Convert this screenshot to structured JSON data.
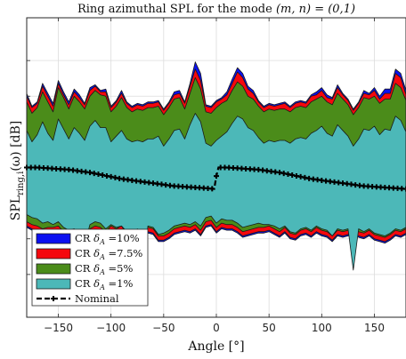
{
  "chart_data": {
    "type": "area",
    "title": "Ring azimuthal SPL for the mode (m,n) = (0,1)",
    "title_parts": {
      "main": "Ring azimuthal SPL for the mode ",
      "math": "(m, n) = (0,1)"
    },
    "xlabel": "Angle [°]",
    "ylabel": "SPL_ring,i(ω) [dB]",
    "ylabel_parts": {
      "main": "SPL",
      "sub": "ring,i",
      "arg": "(ω) [dB]"
    },
    "xlim": [
      -180,
      180
    ],
    "xticks": [
      -150,
      -100,
      -50,
      0,
      50,
      100,
      150
    ],
    "ylim": [
      -10.5,
      10.5
    ],
    "ytick_values": [
      -7.5,
      -5,
      -2.5,
      0,
      2.5,
      5,
      7.5
    ],
    "grid": true,
    "legend_position": "bottom-left",
    "series": [
      {
        "name": "CR δ_A =10%",
        "label_main": "CR ",
        "label_sym": "δ",
        "label_sub": "A",
        "label_rest": " =10%",
        "color": "#0b10f0",
        "x": [
          -180,
          -175,
          -170,
          -165,
          -160,
          -155,
          -150,
          -145,
          -140,
          -135,
          -130,
          -125,
          -120,
          -115,
          -110,
          -105,
          -100,
          -95,
          -90,
          -85,
          -80,
          -75,
          -70,
          -65,
          -60,
          -55,
          -50,
          -45,
          -40,
          -35,
          -30,
          -25,
          -20,
          -15,
          -10,
          -5,
          0,
          5,
          10,
          15,
          20,
          25,
          30,
          35,
          40,
          45,
          50,
          55,
          60,
          65,
          70,
          75,
          80,
          85,
          90,
          95,
          100,
          105,
          110,
          115,
          120,
          125,
          130,
          135,
          140,
          145,
          150,
          155,
          160,
          165,
          170,
          175,
          180
        ],
        "upper": [
          5.2,
          4.3,
          4.6,
          5.9,
          5.2,
          4.5,
          6.1,
          5.3,
          4.6,
          5.5,
          5.1,
          4.5,
          5.6,
          5.8,
          5.4,
          5.5,
          4.3,
          4.7,
          5.4,
          4.6,
          4.3,
          4.5,
          4.4,
          4.6,
          4.6,
          4.7,
          4.1,
          4.6,
          5.3,
          5.4,
          4.6,
          5.9,
          7.4,
          6.6,
          4.4,
          4.3,
          4.7,
          4.9,
          5.3,
          6.2,
          7.0,
          6.6,
          5.7,
          5.4,
          4.7,
          4.3,
          4.5,
          4.4,
          4.5,
          4.6,
          4.3,
          4.6,
          4.7,
          4.6,
          5.1,
          5.3,
          5.6,
          5.1,
          4.9,
          5.8,
          5.2,
          4.8,
          4.1,
          4.6,
          5.4,
          5.2,
          5.6,
          5.0,
          5.5,
          5.5,
          6.9,
          6.6,
          5.4
        ],
        "lower": [
          -4.2,
          -4.4,
          -4.5,
          -4.6,
          -4.6,
          -4.6,
          -4.5,
          -4.9,
          -5.1,
          -5.0,
          -5.5,
          -5.3,
          -4.7,
          -4.5,
          -4.6,
          -4.9,
          -4.5,
          -4.7,
          -4.5,
          -5.1,
          -5.2,
          -4.9,
          -5.1,
          -4.6,
          -4.7,
          -5.2,
          -5.2,
          -5.0,
          -4.7,
          -4.6,
          -4.5,
          -4.6,
          -4.4,
          -4.8,
          -4.2,
          -4.1,
          -4.6,
          -4.3,
          -4.4,
          -4.4,
          -4.6,
          -4.9,
          -4.8,
          -4.7,
          -4.6,
          -4.6,
          -4.5,
          -4.7,
          -4.9,
          -4.6,
          -5.0,
          -5.1,
          -4.8,
          -4.7,
          -4.9,
          -4.6,
          -4.8,
          -4.9,
          -5.2,
          -4.8,
          -4.9,
          -4.8,
          -4.6,
          -4.9,
          -5.0,
          -4.8,
          -5.1,
          -5.2,
          -5.3,
          -5.1,
          -4.8,
          -4.9,
          -4.7
        ]
      },
      {
        "name": "CR δ_A =7.5%",
        "label_main": "CR ",
        "label_sym": "δ",
        "label_sub": "A",
        "label_rest": " =7.5%",
        "color": "#f5070d",
        "x": [
          -180,
          -175,
          -170,
          -165,
          -160,
          -155,
          -150,
          -145,
          -140,
          -135,
          -130,
          -125,
          -120,
          -115,
          -110,
          -105,
          -100,
          -95,
          -90,
          -85,
          -80,
          -75,
          -70,
          -65,
          -60,
          -55,
          -50,
          -45,
          -40,
          -35,
          -30,
          -25,
          -20,
          -15,
          -10,
          -5,
          0,
          5,
          10,
          15,
          20,
          25,
          30,
          35,
          40,
          45,
          50,
          55,
          60,
          65,
          70,
          75,
          80,
          85,
          90,
          95,
          100,
          105,
          110,
          115,
          120,
          125,
          130,
          135,
          140,
          145,
          150,
          155,
          160,
          165,
          170,
          175,
          180
        ],
        "upper": [
          5.0,
          4.2,
          4.5,
          5.7,
          5.0,
          4.3,
          5.9,
          5.1,
          4.4,
          5.3,
          4.9,
          4.4,
          5.4,
          5.7,
          5.3,
          5.3,
          4.2,
          4.6,
          5.2,
          4.5,
          4.2,
          4.4,
          4.3,
          4.5,
          4.5,
          4.6,
          4.0,
          4.5,
          5.1,
          5.2,
          4.5,
          5.7,
          6.9,
          6.1,
          4.3,
          4.2,
          4.6,
          4.8,
          5.1,
          5.9,
          6.7,
          6.3,
          5.5,
          5.2,
          4.6,
          4.2,
          4.4,
          4.3,
          4.4,
          4.5,
          4.2,
          4.5,
          4.6,
          4.5,
          5.0,
          5.1,
          5.4,
          4.9,
          4.8,
          5.6,
          5.1,
          4.7,
          4.0,
          4.5,
          5.2,
          5.1,
          5.4,
          4.8,
          5.2,
          5.2,
          6.6,
          6.3,
          5.1
        ],
        "lower": [
          -4.1,
          -4.3,
          -4.4,
          -4.5,
          -4.5,
          -4.5,
          -4.4,
          -4.8,
          -5.0,
          -4.9,
          -5.4,
          -5.2,
          -4.6,
          -4.4,
          -4.5,
          -4.8,
          -4.4,
          -4.6,
          -4.4,
          -5.0,
          -5.1,
          -4.8,
          -5.0,
          -4.5,
          -4.6,
          -5.1,
          -5.1,
          -4.9,
          -4.6,
          -4.5,
          -4.4,
          -4.5,
          -4.3,
          -4.7,
          -4.1,
          -4.0,
          -4.5,
          -4.2,
          -4.3,
          -4.3,
          -4.5,
          -4.8,
          -4.7,
          -4.6,
          -4.5,
          -4.5,
          -4.4,
          -4.6,
          -4.8,
          -4.5,
          -4.9,
          -5.0,
          -4.7,
          -4.6,
          -4.8,
          -4.5,
          -4.7,
          -4.8,
          -5.1,
          -4.7,
          -4.8,
          -4.7,
          -4.5,
          -4.8,
          -4.9,
          -4.7,
          -5.0,
          -5.1,
          -5.2,
          -5.0,
          -4.7,
          -4.8,
          -4.6
        ]
      },
      {
        "name": "CR δ_A =5%",
        "label_main": "CR ",
        "label_sym": "δ",
        "label_sub": "A",
        "label_rest": " =5%",
        "color": "#4b8c1a",
        "x": [
          -180,
          -175,
          -170,
          -165,
          -160,
          -155,
          -150,
          -145,
          -140,
          -135,
          -130,
          -125,
          -120,
          -115,
          -110,
          -105,
          -100,
          -95,
          -90,
          -85,
          -80,
          -75,
          -70,
          -65,
          -60,
          -55,
          -50,
          -45,
          -40,
          -35,
          -30,
          -25,
          -20,
          -15,
          -10,
          -5,
          0,
          5,
          10,
          15,
          20,
          25,
          30,
          35,
          40,
          45,
          50,
          55,
          60,
          65,
          70,
          75,
          80,
          85,
          90,
          95,
          100,
          105,
          110,
          115,
          120,
          125,
          130,
          135,
          140,
          145,
          150,
          155,
          160,
          165,
          170,
          175,
          180
        ],
        "upper": [
          4.6,
          3.8,
          4.2,
          5.3,
          4.6,
          3.9,
          5.6,
          4.9,
          4.1,
          5.0,
          4.6,
          4.1,
          5.0,
          5.4,
          5.1,
          5.0,
          3.9,
          4.3,
          4.9,
          4.2,
          3.9,
          4.1,
          4.0,
          4.2,
          4.2,
          4.3,
          3.7,
          4.2,
          4.8,
          4.9,
          4.1,
          5.2,
          6.3,
          5.5,
          3.9,
          3.8,
          4.2,
          4.5,
          4.7,
          5.4,
          6.0,
          5.7,
          5.0,
          4.8,
          4.3,
          3.9,
          4.1,
          4.0,
          4.1,
          4.1,
          3.9,
          4.2,
          4.3,
          4.2,
          4.6,
          4.8,
          5.0,
          4.6,
          4.4,
          5.2,
          4.8,
          4.4,
          3.7,
          4.2,
          4.9,
          4.8,
          5.0,
          4.5,
          4.8,
          4.8,
          5.9,
          5.6,
          4.7
        ],
        "lower": [
          -3.8,
          -4.0,
          -4.1,
          -4.3,
          -4.2,
          -4.2,
          -4.1,
          -4.5,
          -4.7,
          -4.6,
          -5.0,
          -4.9,
          -4.3,
          -4.1,
          -4.2,
          -4.5,
          -4.1,
          -4.3,
          -4.1,
          -4.7,
          -4.8,
          -4.5,
          -4.7,
          -4.2,
          -4.3,
          -4.8,
          -4.8,
          -4.6,
          -4.3,
          -4.2,
          -4.1,
          -4.2,
          -4.0,
          -4.4,
          -3.8,
          -3.7,
          -4.2,
          -3.9,
          -4.0,
          -4.0,
          -4.2,
          -4.5,
          -4.4,
          -4.3,
          -4.2,
          -4.2,
          -4.1,
          -4.3,
          -4.5,
          -4.2,
          -4.6,
          -4.7,
          -4.4,
          -4.3,
          -4.5,
          -4.2,
          -4.4,
          -4.5,
          -4.8,
          -4.4,
          -4.5,
          -4.4,
          -4.2,
          -4.5,
          -4.6,
          -4.4,
          -4.7,
          -4.8,
          -4.9,
          -4.7,
          -4.4,
          -4.5,
          -4.3
        ]
      },
      {
        "name": "CR δ_A =1%",
        "label_main": "CR ",
        "label_sym": "δ",
        "label_sub": "A",
        "label_rest": " =1%",
        "color": "#4cb8b8",
        "x": [
          -180,
          -175,
          -170,
          -165,
          -160,
          -155,
          -150,
          -145,
          -140,
          -135,
          -130,
          -125,
          -120,
          -115,
          -110,
          -105,
          -100,
          -95,
          -90,
          -85,
          -80,
          -75,
          -70,
          -65,
          -60,
          -55,
          -50,
          -45,
          -40,
          -35,
          -30,
          -25,
          -20,
          -15,
          -10,
          -5,
          0,
          5,
          10,
          15,
          20,
          25,
          30,
          35,
          40,
          45,
          50,
          55,
          60,
          65,
          70,
          75,
          80,
          85,
          90,
          95,
          100,
          105,
          110,
          115,
          120,
          125,
          130,
          135,
          140,
          145,
          150,
          155,
          160,
          165,
          170,
          175,
          180
        ],
        "upper": [
          2.6,
          1.8,
          2.3,
          3.2,
          2.4,
          1.9,
          3.4,
          2.7,
          2.0,
          2.8,
          2.4,
          1.9,
          2.9,
          3.3,
          2.8,
          2.8,
          1.8,
          2.2,
          2.6,
          2.0,
          1.8,
          1.9,
          1.8,
          2.0,
          2.0,
          2.2,
          1.5,
          2.0,
          2.6,
          2.7,
          2.0,
          3.0,
          3.8,
          3.2,
          1.7,
          1.5,
          1.9,
          2.2,
          2.5,
          3.1,
          3.6,
          3.4,
          2.8,
          2.6,
          2.1,
          1.7,
          1.9,
          1.8,
          1.9,
          1.9,
          1.7,
          2.0,
          2.1,
          2.0,
          2.4,
          2.6,
          2.9,
          2.4,
          2.2,
          3.0,
          2.6,
          2.2,
          1.5,
          2.0,
          2.7,
          2.6,
          2.9,
          2.3,
          2.7,
          2.6,
          3.6,
          3.3,
          2.5
        ],
        "lower": [
          -3.3,
          -3.5,
          -3.6,
          -3.9,
          -3.8,
          -4.0,
          -3.8,
          -4.2,
          -4.4,
          -4.3,
          -4.7,
          -5.4,
          -4.0,
          -3.8,
          -3.9,
          -4.3,
          -4.0,
          -4.2,
          -4.1,
          -4.5,
          -4.8,
          -4.3,
          -7.5,
          -4.1,
          -4.2,
          -4.7,
          -4.6,
          -4.4,
          -4.1,
          -4.0,
          -3.9,
          -4.0,
          -3.8,
          -4.1,
          -3.5,
          -3.4,
          -3.9,
          -3.6,
          -3.7,
          -3.7,
          -3.9,
          -4.2,
          -4.1,
          -4.0,
          -3.9,
          -4.0,
          -4.0,
          -4.1,
          -4.3,
          -4.1,
          -4.5,
          -4.6,
          -4.3,
          -4.2,
          -4.4,
          -4.1,
          -4.3,
          -4.4,
          -4.8,
          -4.3,
          -4.4,
          -4.3,
          -7.2,
          -4.3,
          -4.5,
          -4.3,
          -4.6,
          -4.7,
          -4.8,
          -4.6,
          -4.3,
          -4.4,
          -4.2
        ]
      }
    ],
    "nominal": {
      "name": "Nominal",
      "color": "#000000",
      "x": [
        -180,
        -170,
        -160,
        -150,
        -140,
        -130,
        -120,
        -110,
        -100,
        -90,
        -80,
        -70,
        -60,
        -50,
        -40,
        -30,
        -20,
        -10,
        -2,
        0,
        2,
        10,
        20,
        30,
        40,
        50,
        60,
        70,
        80,
        90,
        100,
        110,
        120,
        130,
        140,
        150,
        160,
        170,
        180
      ],
      "y": [
        0.0,
        0.0,
        -0.05,
        -0.1,
        -0.15,
        -0.25,
        -0.35,
        -0.5,
        -0.65,
        -0.8,
        -0.9,
        -1.0,
        -1.1,
        -1.2,
        -1.3,
        -1.35,
        -1.4,
        -1.45,
        -1.5,
        -0.6,
        0.0,
        0.0,
        -0.05,
        -0.1,
        -0.15,
        -0.25,
        -0.35,
        -0.5,
        -0.65,
        -0.8,
        -0.9,
        -1.0,
        -1.1,
        -1.2,
        -1.3,
        -1.35,
        -1.4,
        -1.45,
        -1.5
      ]
    }
  }
}
